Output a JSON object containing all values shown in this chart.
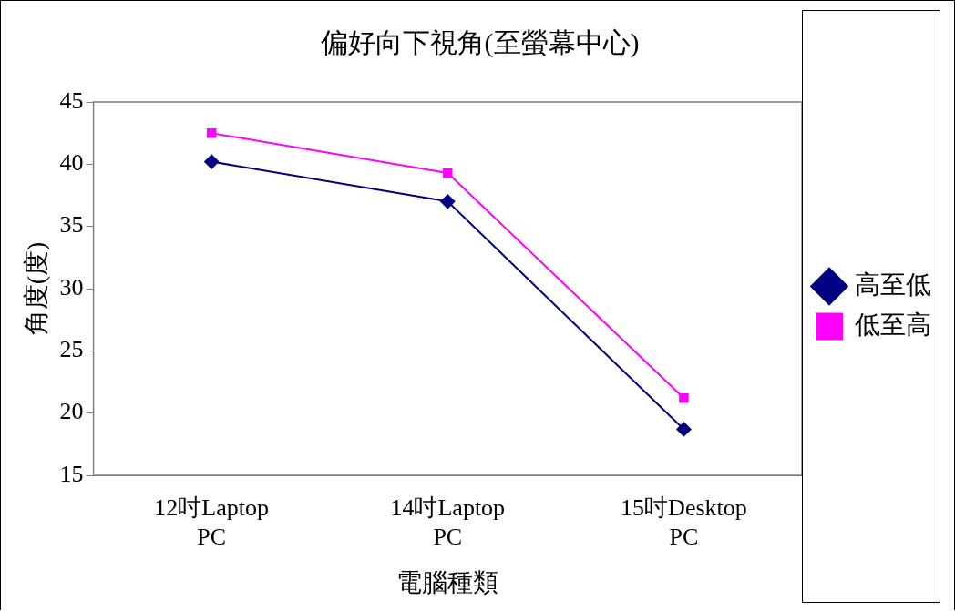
{
  "chart_data": {
    "type": "line",
    "title": "偏好向下視角(至螢幕中心)",
    "xlabel": "電腦種類",
    "ylabel": "角度(度)",
    "categories": [
      "12吋Laptop PC",
      "14吋Laptop PC",
      "15吋Desktop PC"
    ],
    "series": [
      {
        "name": "高至低",
        "color": "#000080",
        "marker": "diamond",
        "values": [
          40.2,
          37.0,
          18.7
        ]
      },
      {
        "name": "低至高",
        "color": "#ff00ff",
        "marker": "square",
        "values": [
          42.5,
          39.3,
          21.2
        ]
      }
    ],
    "ylim": [
      15,
      45
    ],
    "yticks": [
      15,
      20,
      25,
      30,
      35,
      40,
      45
    ],
    "grid": false,
    "legend": "right",
    "line_style": "solid"
  }
}
